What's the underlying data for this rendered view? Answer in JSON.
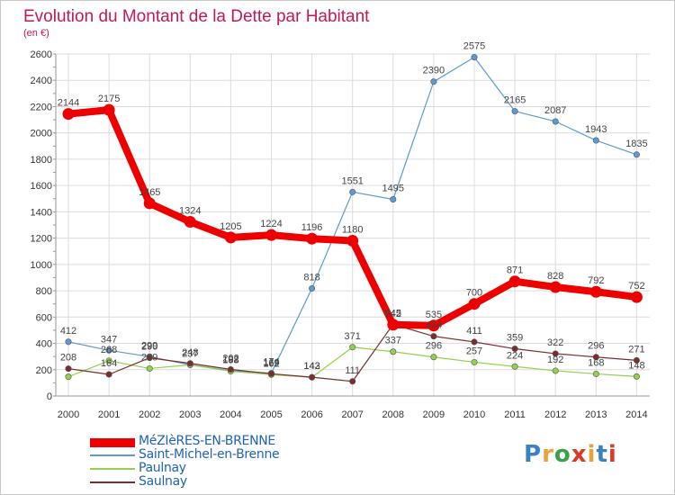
{
  "chart_data": {
    "type": "line",
    "title": "Evolution du Montant de la Dette par Habitant",
    "subtitle": "(en €)",
    "x": [
      "2000",
      "2001",
      "2002",
      "2003",
      "2004",
      "2005",
      "2006",
      "2007",
      "2008",
      "2009",
      "2010",
      "2011",
      "2012",
      "2013",
      "2014"
    ],
    "ylim": [
      0,
      2600
    ],
    "yticks": [
      0,
      200,
      400,
      600,
      800,
      1000,
      1200,
      1400,
      1600,
      1800,
      2000,
      2200,
      2400,
      2600
    ],
    "grid": true,
    "legend_position": "bottom-left",
    "series": [
      {
        "name": "MéZIèRES-EN-BRENNE",
        "color": "#ee0000",
        "values": [
          2144,
          2175,
          1465,
          1324,
          1205,
          1224,
          1196,
          1180,
          542,
          535,
          700,
          871,
          828,
          792,
          752
        ]
      },
      {
        "name": "Saint-Michel-en-Brenne",
        "color": "#5b9bd5",
        "values": [
          412,
          347,
          299,
          237,
          192,
          174,
          818,
          1551,
          1495,
          2390,
          2575,
          2165,
          2087,
          1943,
          1835
        ]
      },
      {
        "name": "Paulnay",
        "color": "#92d050",
        "values": [
          146,
          268,
          209,
          237,
          188,
          162,
          142,
          371,
          337,
          296,
          257,
          224,
          192,
          168,
          148
        ]
      },
      {
        "name": "Saulnay",
        "color": "#7b2d2d",
        "values": [
          208,
          164,
          290,
          248,
          202,
          169,
          143,
          111,
          545,
          454,
          411,
          359,
          322,
          296,
          271
        ]
      }
    ],
    "data_labels": [
      {
        "series": 0,
        "values": [
          2144,
          2175,
          1465,
          1324,
          1205,
          1224,
          1196,
          1180,
          542,
          535,
          700,
          871,
          828,
          792,
          752
        ]
      },
      {
        "series": 1,
        "values": [
          412,
          347,
          299,
          237,
          192,
          174,
          818,
          1551,
          1495,
          2390,
          2575,
          2165,
          2087,
          1943,
          1835
        ]
      },
      {
        "series": 2,
        "values": [
          null,
          268,
          209,
          null,
          188,
          162,
          142,
          371,
          337,
          296,
          257,
          224,
          192,
          168,
          148
        ]
      },
      {
        "series": 3,
        "values": [
          208,
          164,
          290,
          248,
          202,
          169,
          143,
          111,
          545,
          454,
          411,
          359,
          322,
          296,
          271
        ]
      }
    ]
  },
  "brand": {
    "letters": [
      "P",
      "r",
      "o",
      "x",
      "i",
      "t",
      "i"
    ],
    "colors": [
      "#3b82c4",
      "#e8a33a",
      "#3aa04a",
      "#d93a2a",
      "#e8a33a",
      "#3b82c4",
      "#d93a2a"
    ]
  }
}
